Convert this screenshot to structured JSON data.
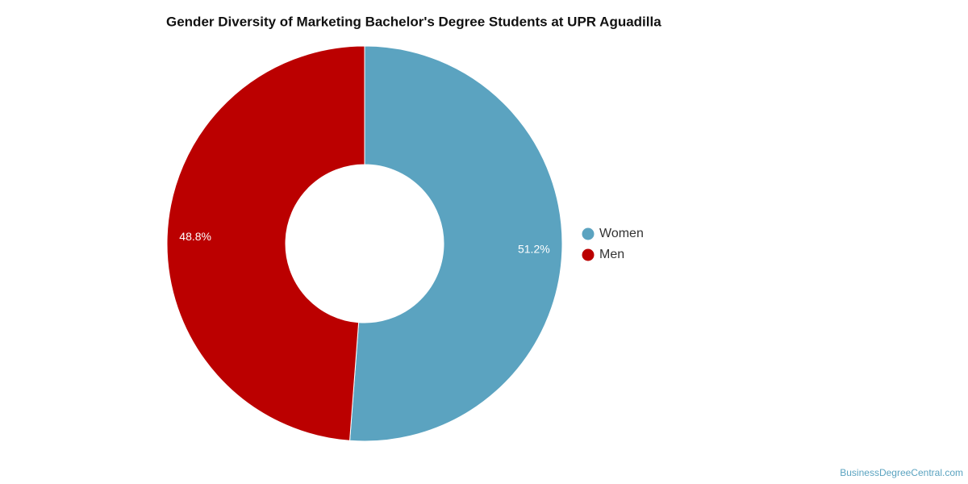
{
  "chart_data": {
    "type": "pie",
    "title": "Gender Diversity of Marketing Bachelor's Degree Students at UPR Aguadilla",
    "categories": [
      "Women",
      "Men"
    ],
    "values": [
      51.2,
      48.8
    ],
    "value_labels": [
      "51.2%",
      "48.8%"
    ],
    "colors": [
      "#5ba3c0",
      "#bb0000"
    ],
    "donut": true,
    "legend": "right",
    "source": "BusinessDegreeCentral.com"
  }
}
